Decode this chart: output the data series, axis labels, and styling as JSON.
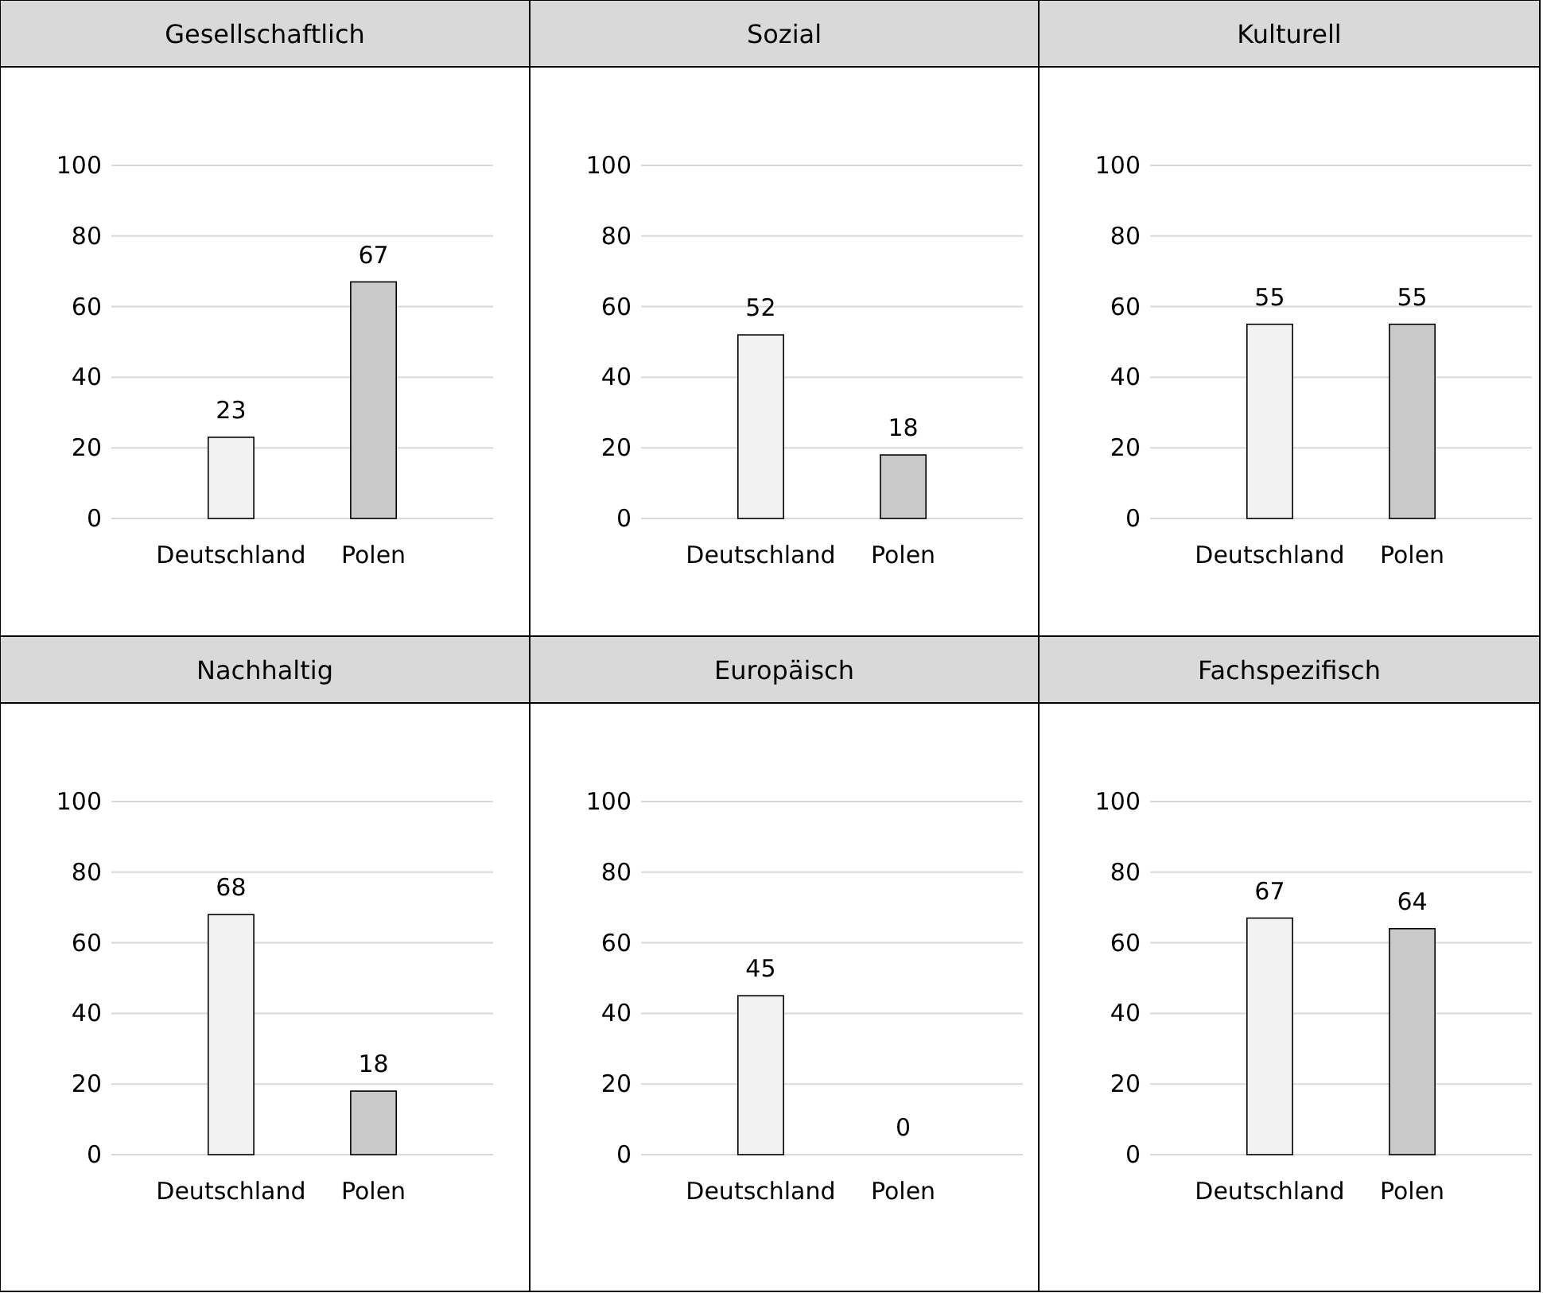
{
  "chart_data": [
    {
      "type": "bar",
      "title": "Gesellschaftlich",
      "categories": [
        "Deutschland",
        "Polen"
      ],
      "values": [
        23,
        67
      ],
      "colors": [
        "#f2f2f2",
        "#c9c9c9"
      ],
      "ylim": [
        0,
        100
      ],
      "yticks": [
        0,
        20,
        40,
        60,
        80,
        100
      ],
      "grid": "y",
      "data_labels": true
    },
    {
      "type": "bar",
      "title": "Sozial",
      "categories": [
        "Deutschland",
        "Polen"
      ],
      "values": [
        52,
        18
      ],
      "colors": [
        "#f2f2f2",
        "#c9c9c9"
      ],
      "ylim": [
        0,
        100
      ],
      "yticks": [
        0,
        20,
        40,
        60,
        80,
        100
      ],
      "grid": "y",
      "data_labels": true
    },
    {
      "type": "bar",
      "title": "Kulturell",
      "categories": [
        "Deutschland",
        "Polen"
      ],
      "values": [
        55,
        55
      ],
      "colors": [
        "#f2f2f2",
        "#c9c9c9"
      ],
      "ylim": [
        0,
        100
      ],
      "yticks": [
        0,
        20,
        40,
        60,
        80,
        100
      ],
      "grid": "y",
      "data_labels": true
    },
    {
      "type": "bar",
      "title": "Nachhaltig",
      "categories": [
        "Deutschland",
        "Polen"
      ],
      "values": [
        68,
        18
      ],
      "colors": [
        "#f2f2f2",
        "#c9c9c9"
      ],
      "ylim": [
        0,
        100
      ],
      "yticks": [
        0,
        20,
        40,
        60,
        80,
        100
      ],
      "grid": "y",
      "data_labels": true
    },
    {
      "type": "bar",
      "title": "Europäisch",
      "categories": [
        "Deutschland",
        "Polen"
      ],
      "values": [
        45,
        0
      ],
      "colors": [
        "#f2f2f2",
        "#c9c9c9"
      ],
      "ylim": [
        0,
        100
      ],
      "yticks": [
        0,
        20,
        40,
        60,
        80,
        100
      ],
      "grid": "y",
      "data_labels": true
    },
    {
      "type": "bar",
      "title": "Fachspezifisch",
      "categories": [
        "Deutschland",
        "Polen"
      ],
      "values": [
        67,
        64
      ],
      "colors": [
        "#f2f2f2",
        "#c9c9c9"
      ],
      "ylim": [
        0,
        100
      ],
      "yticks": [
        0,
        20,
        40,
        60,
        80,
        100
      ],
      "grid": "y",
      "data_labels": true
    }
  ]
}
